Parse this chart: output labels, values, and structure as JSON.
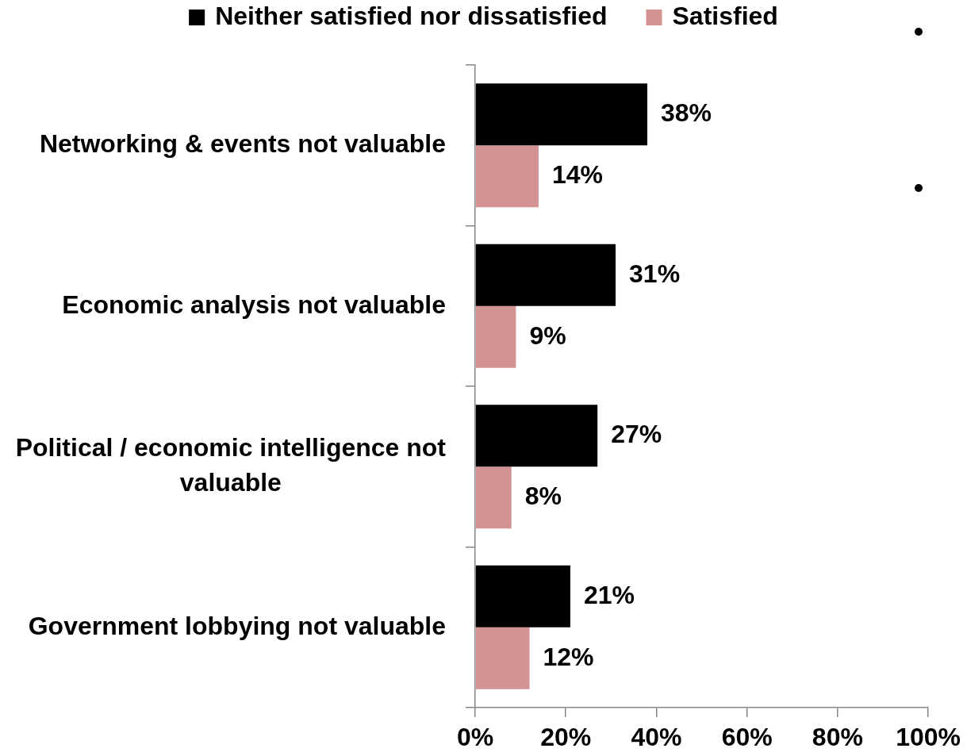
{
  "chart_data": {
    "type": "bar",
    "orientation": "horizontal",
    "categories": [
      "Networking & events not valuable",
      "Economic analysis not valuable",
      "Political / economic intelligence not valuable",
      "Government lobbying not valuable"
    ],
    "series": [
      {
        "name": "Neither satisfied nor dissatisfied",
        "color": "#000000",
        "values": [
          38,
          31,
          27,
          21
        ],
        "value_labels": [
          "38%",
          "31%",
          "27%",
          "21%"
        ]
      },
      {
        "name": "Satisfied",
        "color": "#d39393",
        "values": [
          14,
          9,
          8,
          12
        ],
        "value_labels": [
          "14%",
          "9%",
          "8%",
          "12%"
        ]
      }
    ],
    "xlim": [
      0,
      100
    ],
    "xticks": [
      {
        "value": 0,
        "label": "0%"
      },
      {
        "value": 20,
        "label": "20%"
      },
      {
        "value": 40,
        "label": "40%"
      },
      {
        "value": 60,
        "label": "60%"
      },
      {
        "value": 80,
        "label": "80%"
      },
      {
        "value": 100,
        "label": "100%"
      }
    ],
    "legend": "top",
    "grid": false
  }
}
